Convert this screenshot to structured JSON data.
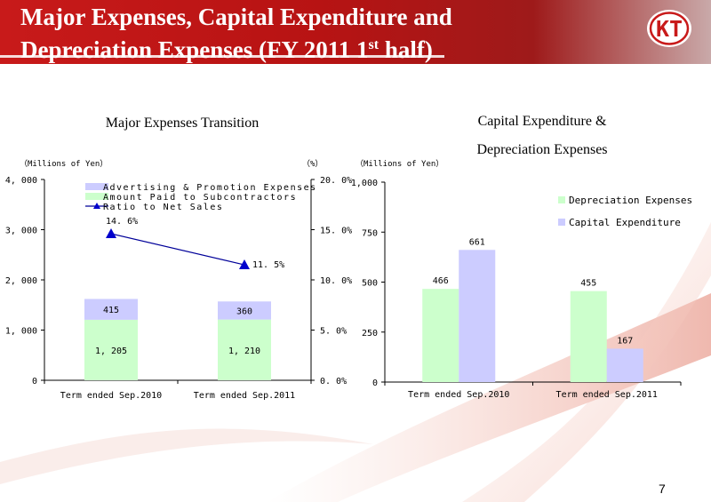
{
  "page": {
    "title_line1": "Major Expenses, Capital Expenditure and",
    "title_line2_main": "Depreciation Expenses (FY 2011 1",
    "title_line2_sup": "st",
    "title_line2_end": " half)",
    "logo_text": "KT",
    "page_number": "7"
  },
  "colors": {
    "header_red": "#c81a1a",
    "green_bar": "#ccffcc",
    "lavender_bar": "#ccccff",
    "line_blue": "#000099",
    "marker_blue": "#0000cc"
  },
  "chart_data": [
    {
      "type": "bar",
      "stacked": true,
      "title": "Major Expenses Transition",
      "ylabel_left": "（Millions of Yen）",
      "ylabel_right": "（%）",
      "categories": [
        "Term ended Sep.2010",
        "Term ended Sep.2011"
      ],
      "y_ticks": [
        "0",
        "1, 000",
        "2, 000",
        "3, 000",
        "4, 000"
      ],
      "y2_ticks": [
        "0. 0%",
        "5. 0%",
        "10. 0%",
        "15. 0%",
        "20. 0%"
      ],
      "ylim": [
        0,
        4000
      ],
      "y2lim": [
        0,
        20
      ],
      "series": [
        {
          "name": "Amount Paid to Subcontractors",
          "values": [
            1205,
            1210
          ],
          "labels": [
            "1, 205",
            "1, 210"
          ]
        },
        {
          "name": "Advertising & Promotion Expenses",
          "values": [
            415,
            360
          ],
          "labels": [
            "415",
            "360"
          ]
        }
      ],
      "line": {
        "name": "Ratio to Net Sales",
        "values": [
          14.6,
          11.5
        ],
        "labels": [
          "14. 6%",
          "11. 5%"
        ]
      },
      "legend": [
        "Advertising & Promotion Expenses",
        "Amount Paid to Subcontractors",
        "Ratio to Net Sales"
      ],
      "legend_position": "top"
    },
    {
      "type": "bar",
      "title_line1": "Capital Expenditure &",
      "title_line2": "Depreciation Expenses",
      "ylabel": "（Millions of Yen）",
      "categories": [
        "Term ended Sep.2010",
        "Term ended Sep.2011"
      ],
      "y_ticks": [
        "0",
        "250",
        "500",
        "750",
        "1,000"
      ],
      "ylim": [
        0,
        1000
      ],
      "series": [
        {
          "name": "Depreciation Expenses",
          "values": [
            466,
            455
          ],
          "labels": [
            "466",
            "455"
          ]
        },
        {
          "name": "Capital Expenditure",
          "values": [
            661,
            167
          ],
          "labels": [
            "661",
            "167"
          ]
        }
      ],
      "legend": [
        "Depreciation Expenses",
        "Capital Expenditure"
      ],
      "legend_position": "top-right"
    }
  ]
}
